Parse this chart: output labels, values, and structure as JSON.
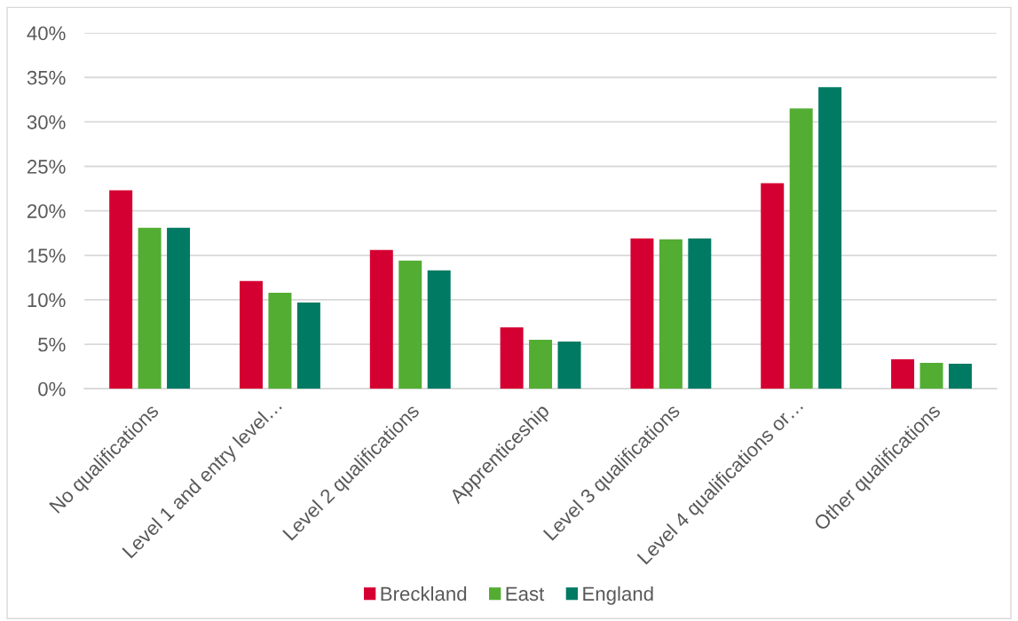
{
  "chart_data": {
    "type": "bar",
    "categories": [
      "No qualifications",
      "Level 1 and entry level…",
      "Level 2 qualifications",
      "Apprenticeship",
      "Level 3 qualifications",
      "Level 4 qualifications or…",
      "Other qualifications"
    ],
    "series": [
      {
        "name": "Breckland",
        "color": "#d50032",
        "values": [
          22.3,
          12.1,
          15.6,
          6.9,
          16.9,
          23.1,
          3.3
        ]
      },
      {
        "name": "East",
        "color": "#53ad33",
        "values": [
          18.1,
          10.8,
          14.4,
          5.5,
          16.8,
          31.5,
          2.9
        ]
      },
      {
        "name": "England",
        "color": "#007a63",
        "values": [
          18.1,
          9.7,
          13.3,
          5.3,
          16.9,
          33.9,
          2.8
        ]
      }
    ],
    "ylim": [
      0,
      40
    ],
    "yticks": [
      {
        "value": 0,
        "label": "0%"
      },
      {
        "value": 5,
        "label": "5%"
      },
      {
        "value": 10,
        "label": "10%"
      },
      {
        "value": 15,
        "label": "15%"
      },
      {
        "value": 20,
        "label": "20%"
      },
      {
        "value": 25,
        "label": "25%"
      },
      {
        "value": 30,
        "label": "30%"
      },
      {
        "value": 35,
        "label": "35%"
      },
      {
        "value": 40,
        "label": "40%"
      }
    ],
    "grid": "y",
    "legend": "bottom"
  }
}
